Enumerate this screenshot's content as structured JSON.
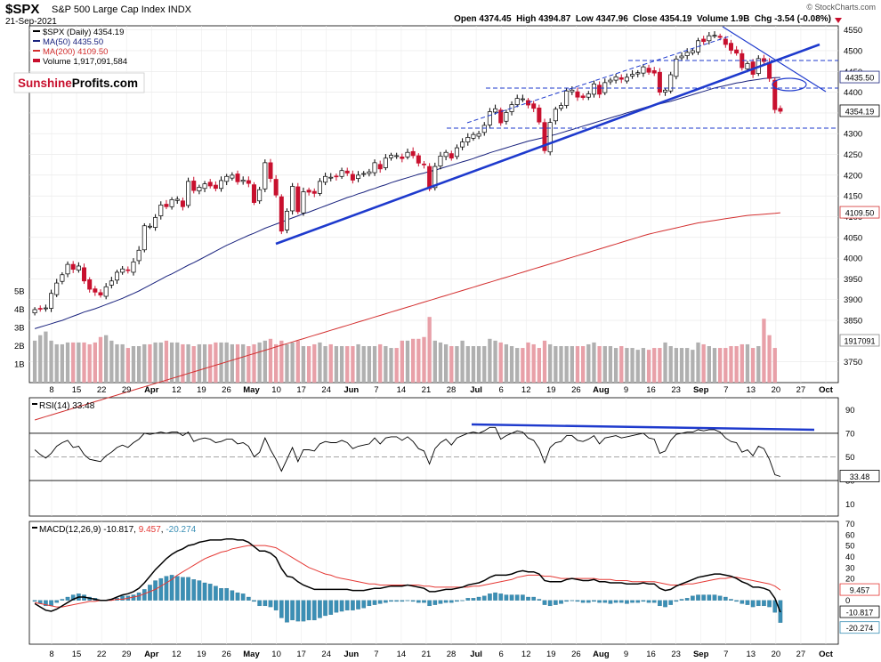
{
  "header": {
    "symbol": "$SPX",
    "name": "S&P 500 Large Cap Index",
    "exchange": "INDX",
    "date": "21-Sep-2021",
    "credit": "© StockCharts.com",
    "ohlc": "Open 4374.45  High 4394.87  Low 4347.96  Close 4354.19  Volume 1.9B  Chg -3.54 (-0.08%)",
    "brand_left": "Sunshine",
    "brand_right": "Profits.com"
  },
  "legend": {
    "main": "$SPX (Daily) 4354.19",
    "ma50": "MA(50) 4435.50",
    "ma200": "MA(200) 4109.50",
    "volume": "Volume 1,917,091,584"
  },
  "colors": {
    "up": "#ffffff",
    "down": "#c8102e",
    "ma50": "#1a237e",
    "ma200": "#d32f2f",
    "trend": "#1e3acd",
    "vol_up": "#b0b0b0",
    "vol_down": "#e8a0a8",
    "macd": "#000000",
    "signal": "#e53935",
    "hist": "#3b8fb5"
  },
  "chart_data": [
    {
      "type": "candlestick",
      "title": "$SPX (Daily) 4354.19",
      "ylim": [
        3700,
        4560
      ],
      "y_ticks": [
        3750,
        3850,
        3900,
        3950,
        4000,
        4050,
        4100,
        4150,
        4200,
        4250,
        4300,
        4350,
        4400,
        4450,
        4500,
        4550
      ],
      "x_labels": [
        "8",
        "15",
        "22",
        "29",
        "Apr",
        "12",
        "19",
        "26",
        "May",
        "10",
        "17",
        "24",
        "Jun",
        "7",
        "14",
        "21",
        "28",
        "Jul",
        "6",
        "12",
        "19",
        "26",
        "Aug",
        "9",
        "16",
        "23",
        "Sep",
        "7",
        "13",
        "20",
        "27",
        "Oct"
      ],
      "price_tags": [
        "4435.50",
        "4354.19",
        "4109.50"
      ],
      "volume_tags": [
        "5B",
        "4B",
        "3B",
        "2B",
        "1B"
      ],
      "volume_last": "1917091",
      "closes": [
        3876,
        3878,
        3880,
        3915,
        3940,
        3960,
        3985,
        3973,
        3981,
        3945,
        3925,
        3918,
        3911,
        3931,
        3945,
        3966,
        3974,
        3970,
        3991,
        4019,
        4078,
        4077,
        4098,
        4128,
        4124,
        4141,
        4142,
        4124,
        4185,
        4163,
        4171,
        4179,
        4174,
        4168,
        4187,
        4197,
        4200,
        4184,
        4188,
        4180,
        4134,
        4165,
        4230,
        4192,
        4152,
        4065,
        4113,
        4173,
        4112,
        4160,
        4159,
        4156,
        4185,
        4197,
        4195,
        4196,
        4211,
        4205,
        4188,
        4200,
        4204,
        4208,
        4230,
        4215,
        4241,
        4248,
        4247,
        4240,
        4255,
        4247,
        4229,
        4225,
        4167,
        4221,
        4246,
        4255,
        4241,
        4266,
        4280,
        4291,
        4298,
        4300,
        4320,
        4353,
        4360,
        4326,
        4351,
        4370,
        4385,
        4384,
        4369,
        4361,
        4328,
        4259,
        4327,
        4359,
        4368,
        4403,
        4405,
        4388,
        4387,
        4396,
        4420,
        4395,
        4423,
        4429,
        4437,
        4431,
        4436,
        4443,
        4447,
        4461,
        4448,
        4446,
        4400,
        4405,
        4442,
        4480,
        4487,
        4496,
        4500,
        4524,
        4522,
        4536,
        4537,
        4532,
        4515,
        4501,
        4494,
        4459,
        4469,
        4443,
        4481,
        4474,
        4433,
        4358,
        4354
      ],
      "ma50": [
        3830,
        3834,
        3838,
        3842,
        3846,
        3850,
        3855,
        3860,
        3865,
        3870,
        3874,
        3878,
        3883,
        3888,
        3893,
        3898,
        3903,
        3909,
        3915,
        3921,
        3928,
        3935,
        3942,
        3949,
        3956,
        3962,
        3969,
        3976,
        3983,
        3989,
        3996,
        4003,
        4010,
        4017,
        4024,
        4031,
        4037,
        4043,
        4049,
        4055,
        4060,
        4066,
        4072,
        4077,
        4082,
        4087,
        4092,
        4097,
        4102,
        4107,
        4111,
        4116,
        4121,
        4126,
        4131,
        4136,
        4141,
        4146,
        4150,
        4155,
        4159,
        4164,
        4168,
        4173,
        4177,
        4182,
        4186,
        4190,
        4194,
        4198,
        4202,
        4205,
        4209,
        4212,
        4216,
        4220,
        4224,
        4228,
        4232,
        4236,
        4240,
        4245,
        4249,
        4254,
        4258,
        4262,
        4266,
        4270,
        4274,
        4278,
        4282,
        4285,
        4288,
        4291,
        4295,
        4298,
        4302,
        4306,
        4310,
        4314,
        4318,
        4322,
        4326,
        4330,
        4334,
        4338,
        4342,
        4346,
        4350,
        4354,
        4358,
        4362,
        4366,
        4369,
        4372,
        4375,
        4378,
        4382,
        4386,
        4390,
        4394,
        4398,
        4402,
        4406,
        4410,
        4413,
        4416,
        4419,
        4422,
        4424,
        4427,
        4429,
        4431,
        4433,
        4434,
        4435,
        4435.5
      ],
      "ma200": [
        3610,
        3614,
        3618,
        3622,
        3626,
        3630,
        3634,
        3638,
        3642,
        3646,
        3650,
        3654,
        3658,
        3662,
        3666,
        3670,
        3674,
        3678,
        3682,
        3686,
        3690,
        3694,
        3698,
        3702,
        3706,
        3710,
        3714,
        3718,
        3722,
        3726,
        3730,
        3734,
        3738,
        3742,
        3746,
        3750,
        3754,
        3758,
        3762,
        3766,
        3770,
        3774,
        3778,
        3782,
        3786,
        3790,
        3794,
        3798,
        3802,
        3806,
        3810,
        3814,
        3818,
        3822,
        3826,
        3830,
        3834,
        3838,
        3842,
        3846,
        3850,
        3854,
        3858,
        3862,
        3866,
        3870,
        3874,
        3878,
        3882,
        3886,
        3890,
        3894,
        3898,
        3902,
        3906,
        3910,
        3914,
        3918,
        3922,
        3926,
        3930,
        3934,
        3938,
        3942,
        3946,
        3950,
        3954,
        3958,
        3962,
        3966,
        3970,
        3974,
        3978,
        3982,
        3986,
        3990,
        3994,
        3998,
        4002,
        4006,
        4010,
        4014,
        4018,
        4022,
        4026,
        4030,
        4034,
        4038,
        4042,
        4046,
        4050,
        4054,
        4058,
        4061,
        4064,
        4067,
        4070,
        4073,
        4076,
        4079,
        4082,
        4085,
        4087,
        4089,
        4091,
        4093,
        4095,
        4097,
        4099,
        4101,
        4103,
        4104,
        4105,
        4106,
        4107,
        4108,
        4109.5
      ],
      "volume": [
        2.3,
        2.6,
        2.8,
        2.3,
        2.1,
        2.1,
        2.2,
        2.2,
        2.2,
        2.2,
        2.1,
        2.2,
        2.5,
        2.6,
        2.3,
        2.1,
        2.1,
        1.9,
        2.0,
        2.0,
        2.1,
        2.1,
        2.2,
        2.2,
        2.3,
        2.2,
        2.2,
        2.1,
        2.1,
        2.0,
        2.1,
        2.1,
        2.1,
        2.2,
        2.2,
        2.2,
        2.1,
        2.1,
        2.1,
        2.0,
        2.1,
        2.2,
        2.3,
        2.4,
        2.1,
        2.3,
        2.1,
        2.2,
        2.3,
        2.0,
        2.0,
        2.1,
        2.2,
        2.0,
        2.1,
        2.0,
        2.0,
        2.0,
        2.0,
        2.1,
        2.0,
        2.0,
        2.0,
        2.1,
        2.0,
        1.9,
        1.9,
        2.3,
        2.3,
        2.4,
        2.4,
        2.5,
        3.6,
        2.3,
        2.2,
        2.1,
        2.0,
        2.0,
        2.3,
        2.0,
        2.0,
        2.0,
        2.0,
        2.4,
        2.3,
        2.2,
        2.1,
        2.0,
        1.9,
        1.9,
        2.2,
        2.1,
        1.9,
        2.3,
        2.1,
        2.0,
        2.0,
        2.0,
        2.0,
        2.0,
        2.0,
        2.1,
        2.2,
        2.0,
        2.0,
        2.0,
        1.9,
        2.0,
        1.9,
        1.9,
        1.8,
        1.9,
        1.8,
        1.9,
        1.9,
        2.2,
        2.0,
        1.9,
        1.9,
        1.9,
        1.8,
        2.2,
        2.1,
        2.0,
        1.9,
        1.9,
        1.9,
        2.0,
        2.0,
        2.1,
        2.1,
        1.9,
        2.0,
        3.5,
        2.6,
        1.9
      ]
    },
    {
      "type": "line",
      "title": "RSI(14) 33.48",
      "ylim": [
        0,
        100
      ],
      "y_ticks": [
        90,
        70,
        50,
        30,
        10
      ],
      "reference_lines": [
        70,
        50,
        30
      ],
      "last_tag": "33.48",
      "values": [
        56,
        52,
        49,
        53,
        59,
        62,
        64,
        58,
        59,
        52,
        48,
        47,
        46,
        51,
        54,
        58,
        60,
        58,
        62,
        65,
        70,
        69,
        70,
        71,
        70,
        71,
        71,
        68,
        71,
        63,
        65,
        66,
        65,
        62,
        63,
        65,
        65,
        61,
        62,
        59,
        50,
        54,
        66,
        56,
        48,
        38,
        48,
        58,
        46,
        56,
        56,
        55,
        61,
        63,
        62,
        62,
        64,
        62,
        57,
        59,
        60,
        61,
        66,
        61,
        66,
        67,
        67,
        64,
        67,
        63,
        57,
        55,
        44,
        57,
        62,
        65,
        60,
        66,
        68,
        70,
        71,
        70,
        72,
        75,
        75,
        65,
        68,
        70,
        72,
        71,
        66,
        64,
        57,
        45,
        58,
        62,
        63,
        68,
        68,
        64,
        63,
        65,
        68,
        61,
        66,
        67,
        68,
        66,
        67,
        68,
        69,
        70,
        66,
        65,
        53,
        55,
        64,
        69,
        70,
        71,
        71,
        73,
        72,
        73,
        73,
        71,
        66,
        63,
        62,
        54,
        56,
        51,
        59,
        57,
        48,
        35,
        33.48
      ]
    },
    {
      "type": "line",
      "title": "MACD(12,26,9) -10.817, 9.457, -20.274",
      "ylim": [
        -40,
        72
      ],
      "y_ticks": [
        70,
        60,
        50,
        40,
        30,
        20,
        10,
        0,
        -10
      ],
      "last_tags": [
        "9.457",
        "-10.817",
        "-20.274"
      ],
      "macd": [
        -3,
        -6,
        -9,
        -10,
        -8,
        -5,
        -2,
        1,
        3,
        3,
        2,
        1,
        0,
        0,
        1,
        3,
        5,
        6,
        8,
        11,
        16,
        22,
        28,
        33,
        38,
        42,
        45,
        47,
        50,
        51,
        53,
        54,
        55,
        55,
        55,
        56,
        56,
        55,
        55,
        53,
        49,
        45,
        45,
        43,
        39,
        29,
        22,
        21,
        17,
        14,
        12,
        10,
        10,
        10,
        10,
        10,
        10,
        10,
        9,
        9,
        9,
        10,
        11,
        11,
        12,
        13,
        13,
        13,
        14,
        13,
        12,
        11,
        8,
        8,
        9,
        10,
        10,
        11,
        12,
        14,
        15,
        16,
        18,
        21,
        23,
        23,
        23,
        24,
        26,
        27,
        26,
        26,
        24,
        18,
        17,
        17,
        17,
        19,
        20,
        19,
        18,
        18,
        19,
        17,
        17,
        16,
        16,
        16,
        15,
        15,
        15,
        16,
        15,
        15,
        11,
        9,
        10,
        13,
        15,
        17,
        19,
        21,
        22,
        23,
        24,
        24,
        23,
        22,
        20,
        17,
        15,
        12,
        12,
        11,
        9,
        2,
        -10.817
      ],
      "signal": [
        -2,
        -3,
        -4,
        -5,
        -6,
        -6,
        -5,
        -4,
        -3,
        -2,
        -1,
        -1,
        0,
        0,
        0,
        1,
        1,
        2,
        3,
        4,
        6,
        8,
        10,
        13,
        16,
        19,
        23,
        26,
        29,
        32,
        35,
        38,
        40,
        42,
        44,
        45,
        47,
        48,
        49,
        50,
        50,
        50,
        50,
        49,
        48,
        45,
        42,
        39,
        36,
        33,
        30,
        28,
        26,
        24,
        23,
        21,
        20,
        19,
        18,
        17,
        16,
        15,
        15,
        14,
        14,
        14,
        14,
        14,
        14,
        14,
        14,
        13,
        13,
        12,
        12,
        12,
        12,
        12,
        12,
        12,
        13,
        13,
        14,
        15,
        16,
        17,
        18,
        19,
        21,
        22,
        23,
        23,
        23,
        22,
        22,
        21,
        20,
        20,
        20,
        20,
        20,
        20,
        20,
        19,
        19,
        19,
        18,
        18,
        18,
        17,
        17,
        17,
        17,
        17,
        16,
        15,
        14,
        14,
        14,
        15,
        15,
        16,
        17,
        18,
        19,
        20,
        20,
        21,
        21,
        20,
        19,
        18,
        17,
        16,
        15,
        13,
        9.457
      ],
      "histogram_last": "-20.274"
    }
  ]
}
